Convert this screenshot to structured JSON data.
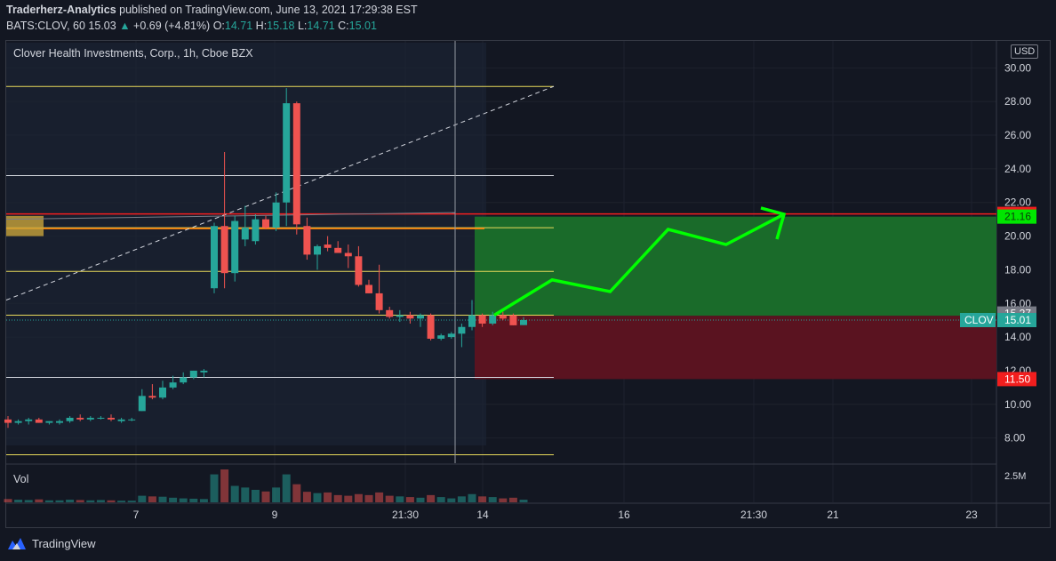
{
  "header": {
    "publisher": "Traderherz-Analytics",
    "published_text": "published on TradingView.com, June 13, 2021 17:29:38 EST"
  },
  "ticker_line": {
    "symbol": "BATS:CLOV, 60",
    "last": "15.03",
    "change": "+0.69 (+4.81%)",
    "o_label": "O:",
    "o": "14.71",
    "h_label": "H:",
    "h": "15.18",
    "l_label": "L:",
    "l": "14.71",
    "c_label": "C:",
    "c": "15.01"
  },
  "instrument_title": "Clover Health Investments, Corp., 1h, Cboe BZX",
  "currency": "USD",
  "volume_label": "Vol",
  "volume_axis_label": "2.5M",
  "footer_brand": "TradingView",
  "colors": {
    "up": "#26a69a",
    "down": "#ef5350",
    "hline_yellow": "#e8d95a",
    "hline_white": "#d1d4dc",
    "resistance_red": "#f21e1e",
    "resistance_orange": "#ff7a00",
    "target_zone": "#1a6b2a",
    "stop_zone": "#5a1320",
    "projection": "#00ff00"
  },
  "chart_data": {
    "type": "candlestick",
    "ylim": [
      6.5,
      31.5
    ],
    "y_ticks": [
      "8.00",
      "10.00",
      "12.00",
      "14.00",
      "16.00",
      "18.00",
      "20.00",
      "22.00",
      "24.00",
      "26.00",
      "28.00",
      "30.00"
    ],
    "x_ticks": [
      "7",
      "9",
      "21:30",
      "14",
      "16",
      "21:30",
      "21",
      "23"
    ],
    "candles": [
      {
        "o": 9.1,
        "h": 9.3,
        "l": 8.6,
        "c": 8.9
      },
      {
        "o": 8.9,
        "h": 9.1,
        "l": 8.8,
        "c": 9.0
      },
      {
        "o": 9.0,
        "h": 9.2,
        "l": 8.8,
        "c": 9.1
      },
      {
        "o": 9.1,
        "h": 9.2,
        "l": 8.9,
        "c": 8.9
      },
      {
        "o": 8.9,
        "h": 9.0,
        "l": 8.8,
        "c": 9.0
      },
      {
        "o": 8.9,
        "h": 9.1,
        "l": 8.8,
        "c": 9.0
      },
      {
        "o": 9.0,
        "h": 9.3,
        "l": 8.9,
        "c": 9.2
      },
      {
        "o": 9.2,
        "h": 9.4,
        "l": 9.0,
        "c": 9.1
      },
      {
        "o": 9.1,
        "h": 9.3,
        "l": 9.0,
        "c": 9.2
      },
      {
        "o": 9.2,
        "h": 9.3,
        "l": 9.1,
        "c": 9.2
      },
      {
        "o": 9.2,
        "h": 9.4,
        "l": 9.0,
        "c": 9.1
      },
      {
        "o": 9.0,
        "h": 9.2,
        "l": 8.9,
        "c": 9.1
      },
      {
        "o": 9.1,
        "h": 9.2,
        "l": 9.0,
        "c": 9.1
      },
      {
        "o": 9.6,
        "h": 10.9,
        "l": 9.6,
        "c": 10.5
      },
      {
        "o": 10.5,
        "h": 11.2,
        "l": 10.3,
        "c": 10.4
      },
      {
        "o": 10.4,
        "h": 11.4,
        "l": 10.3,
        "c": 11.0
      },
      {
        "o": 11.0,
        "h": 11.7,
        "l": 10.9,
        "c": 11.3
      },
      {
        "o": 11.3,
        "h": 11.9,
        "l": 11.2,
        "c": 11.6
      },
      {
        "o": 11.6,
        "h": 12.0,
        "l": 11.5,
        "c": 12.0
      },
      {
        "o": 11.9,
        "h": 12.1,
        "l": 11.6,
        "c": 12.0
      },
      {
        "o": 16.9,
        "h": 20.8,
        "l": 16.6,
        "c": 20.6
      },
      {
        "o": 20.6,
        "h": 25.0,
        "l": 16.9,
        "c": 17.8
      },
      {
        "o": 17.8,
        "h": 21.2,
        "l": 17.3,
        "c": 20.9
      },
      {
        "o": 19.8,
        "h": 21.8,
        "l": 19.4,
        "c": 20.5
      },
      {
        "o": 19.7,
        "h": 21.3,
        "l": 19.5,
        "c": 21.0
      },
      {
        "o": 21.0,
        "h": 21.2,
        "l": 20.4,
        "c": 20.5
      },
      {
        "o": 20.5,
        "h": 22.6,
        "l": 20.3,
        "c": 22.0
      },
      {
        "o": 22.0,
        "h": 28.8,
        "l": 20.6,
        "c": 27.9
      },
      {
        "o": 27.9,
        "h": 28.0,
        "l": 20.1,
        "c": 20.7
      },
      {
        "o": 20.6,
        "h": 21.1,
        "l": 18.6,
        "c": 18.9
      },
      {
        "o": 18.9,
        "h": 19.5,
        "l": 18.0,
        "c": 19.4
      },
      {
        "o": 19.5,
        "h": 20.0,
        "l": 19.1,
        "c": 19.3
      },
      {
        "o": 19.3,
        "h": 19.7,
        "l": 19.0,
        "c": 19.0
      },
      {
        "o": 19.0,
        "h": 19.5,
        "l": 18.1,
        "c": 18.8
      },
      {
        "o": 18.8,
        "h": 19.4,
        "l": 17.0,
        "c": 17.1
      },
      {
        "o": 17.1,
        "h": 17.4,
        "l": 16.6,
        "c": 16.6
      },
      {
        "o": 16.6,
        "h": 18.3,
        "l": 15.4,
        "c": 15.6
      },
      {
        "o": 15.6,
        "h": 15.8,
        "l": 15.1,
        "c": 15.2
      },
      {
        "o": 15.2,
        "h": 15.6,
        "l": 14.9,
        "c": 15.3
      },
      {
        "o": 15.3,
        "h": 15.5,
        "l": 14.8,
        "c": 15.1
      },
      {
        "o": 15.1,
        "h": 15.4,
        "l": 14.6,
        "c": 15.3
      },
      {
        "o": 15.3,
        "h": 15.4,
        "l": 13.8,
        "c": 13.9
      },
      {
        "o": 13.9,
        "h": 14.2,
        "l": 13.8,
        "c": 14.1
      },
      {
        "o": 14.0,
        "h": 14.3,
        "l": 13.9,
        "c": 14.2
      },
      {
        "o": 14.2,
        "h": 14.8,
        "l": 13.4,
        "c": 14.6
      },
      {
        "o": 14.6,
        "h": 16.2,
        "l": 14.4,
        "c": 15.3
      },
      {
        "o": 15.3,
        "h": 15.4,
        "l": 14.6,
        "c": 14.8
      },
      {
        "o": 14.8,
        "h": 15.5,
        "l": 14.7,
        "c": 15.3
      },
      {
        "o": 15.3,
        "h": 15.5,
        "l": 15.0,
        "c": 15.1
      },
      {
        "o": 15.3,
        "h": 15.4,
        "l": 14.7,
        "c": 14.7
      },
      {
        "o": 14.71,
        "h": 15.18,
        "l": 14.71,
        "c": 15.01
      }
    ],
    "volume_rel": [
      0.1,
      0.08,
      0.07,
      0.09,
      0.06,
      0.06,
      0.08,
      0.07,
      0.06,
      0.07,
      0.06,
      0.05,
      0.05,
      0.2,
      0.18,
      0.17,
      0.14,
      0.12,
      0.11,
      0.1,
      0.85,
      1.0,
      0.5,
      0.45,
      0.38,
      0.33,
      0.45,
      0.85,
      0.55,
      0.32,
      0.28,
      0.3,
      0.22,
      0.2,
      0.25,
      0.22,
      0.3,
      0.2,
      0.18,
      0.16,
      0.14,
      0.22,
      0.16,
      0.12,
      0.18,
      0.25,
      0.18,
      0.16,
      0.12,
      0.14,
      0.08
    ],
    "horizontal_levels": [
      {
        "price": 28.9,
        "color": "yellow"
      },
      {
        "price": 23.6,
        "color": "white"
      },
      {
        "price": 20.5,
        "color": "yellow"
      },
      {
        "price": 17.9,
        "color": "yellow"
      },
      {
        "price": 15.3,
        "color": "yellow"
      },
      {
        "price": 11.6,
        "color": "white"
      },
      {
        "price": 7.0,
        "color": "yellow"
      }
    ],
    "resistance_red": 21.32,
    "resistance_orange": 20.45,
    "target_zone": [
      15.27,
      21.16
    ],
    "stop_zone": [
      11.5,
      15.27
    ],
    "projection_path": [
      [
        0,
        15.3
      ],
      [
        1,
        17.4
      ],
      [
        2,
        16.7
      ],
      [
        3,
        20.4
      ],
      [
        4,
        19.5
      ],
      [
        5,
        21.3
      ]
    ],
    "price_labels": [
      {
        "text": "21.32",
        "price": 21.32,
        "bg": "#f21e1e",
        "fg": "#ffffff"
      },
      {
        "text": "21.16",
        "price": 21.16,
        "bg": "#00e600",
        "fg": "#0b3d0b"
      },
      {
        "text": "15.27",
        "price": 15.4,
        "bg": "#787b86",
        "fg": "#ffffff"
      },
      {
        "text": "15.01",
        "price": 15.01,
        "bg": "#26a69a",
        "fg": "#ffffff"
      },
      {
        "text": "11.50",
        "price": 11.5,
        "bg": "#f21e1e",
        "fg": "#ffffff"
      }
    ],
    "last_symbol_tag": "CLOV"
  }
}
